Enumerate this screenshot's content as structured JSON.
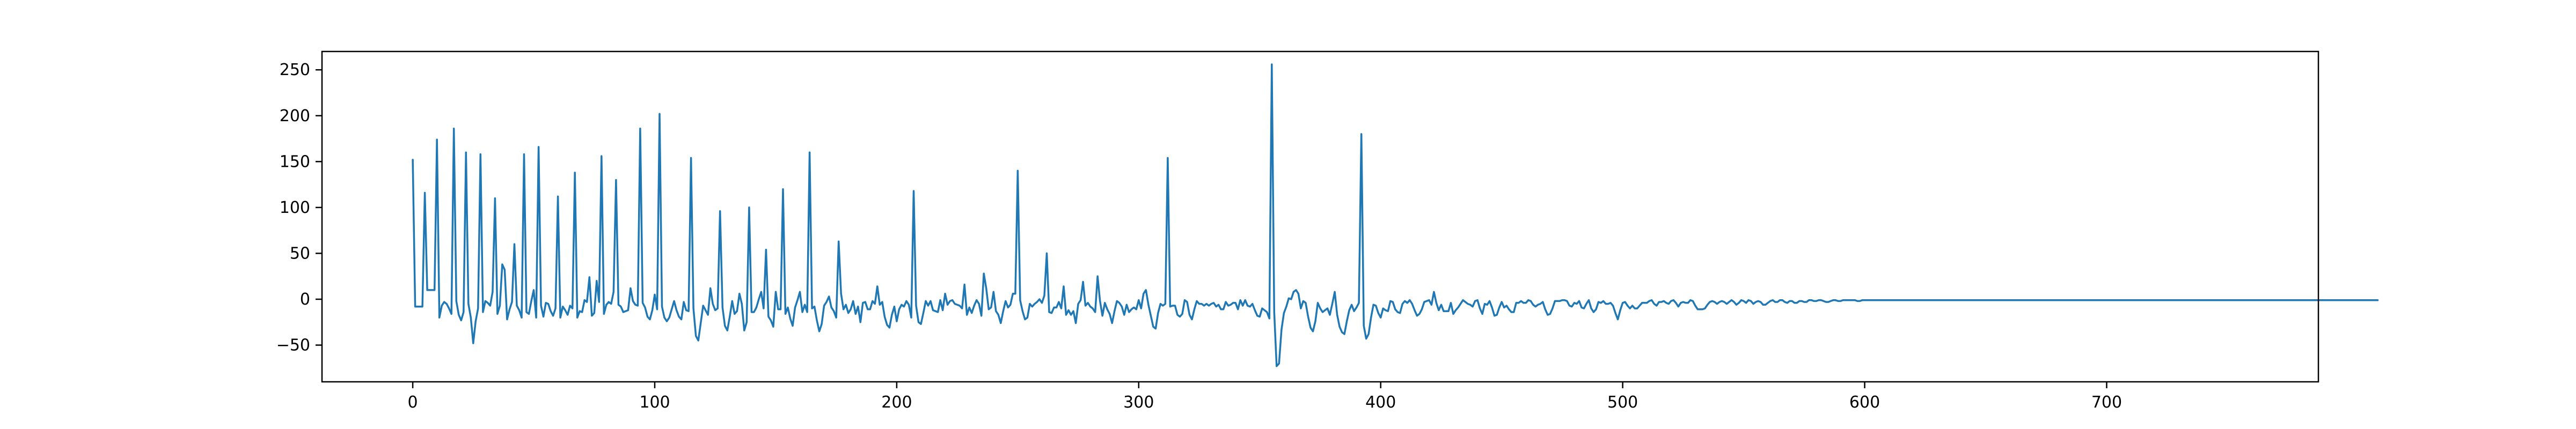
{
  "colors": {
    "series": "#1f77b4",
    "axes": "#000000",
    "background": "#ffffff"
  },
  "chart_data": {
    "type": "line",
    "title": "",
    "xlabel": "",
    "ylabel": "",
    "xlim": [
      -37.5,
      787.5
    ],
    "ylim": [
      -90,
      270
    ],
    "grid": false,
    "legend": "none",
    "x_ticks": [
      0,
      100,
      200,
      300,
      400,
      500,
      600,
      700
    ],
    "y_ticks": [
      -50,
      0,
      50,
      100,
      150,
      200,
      250
    ],
    "series": [
      {
        "x_start": 0,
        "x_step": 1,
        "values": [
          152,
          -8,
          -8,
          -8,
          -8,
          116,
          10,
          10,
          10,
          10,
          174,
          -20,
          -7,
          -3,
          -5,
          -10,
          -16,
          186,
          -2,
          -17,
          -23,
          -14,
          160,
          -5,
          -20,
          -48,
          -24,
          -10,
          158,
          -14,
          -2,
          -4,
          -7,
          8,
          110,
          -16,
          -7,
          38,
          32,
          -22,
          -11,
          -3,
          60,
          -7,
          -12,
          -20,
          158,
          -14,
          -16,
          -2,
          10,
          -20,
          166,
          -7,
          -19,
          -4,
          -5,
          -13,
          -18,
          -10,
          112,
          -20,
          -8,
          -12,
          -17,
          -7,
          -10,
          138,
          -20,
          -13,
          -14,
          -1,
          -3,
          24,
          -18,
          -15,
          20,
          -3,
          156,
          -16,
          -6,
          -3,
          -5,
          8,
          130,
          -6,
          -8,
          -14,
          -13,
          -12,
          12,
          -2,
          -6,
          -7,
          186,
          -4,
          -9,
          -19,
          -22,
          -12,
          5,
          -11,
          202,
          -8,
          -20,
          -24,
          -20,
          -11,
          -2,
          -12,
          -19,
          -22,
          -3,
          -12,
          -13,
          154,
          -10,
          -40,
          -45,
          -26,
          -7,
          -12,
          -17,
          12,
          -5,
          -12,
          -10,
          96,
          -9,
          -29,
          -34,
          -19,
          -2,
          -16,
          -13,
          6,
          -5,
          -34,
          -25,
          100,
          -14,
          -14,
          -9,
          0,
          8,
          -10,
          54,
          -19,
          -23,
          -30,
          8,
          -11,
          -11,
          120,
          -16,
          -9,
          -21,
          -29,
          -9,
          -1,
          8,
          -14,
          -6,
          -14,
          160,
          -10,
          -8,
          -23,
          -35,
          -27,
          -7,
          -3,
          3,
          -9,
          -13,
          -20,
          63,
          6,
          -11,
          -6,
          -15,
          -11,
          -2,
          -16,
          -8,
          -25,
          -4,
          -3,
          -11,
          -11,
          -2,
          -5,
          14,
          -6,
          -3,
          -19,
          -28,
          -31,
          -17,
          -8,
          -24,
          -11,
          -6,
          -8,
          -2,
          -6,
          -20,
          118,
          -7,
          -25,
          -27,
          -15,
          -2,
          -7,
          -2,
          -12,
          -13,
          -14,
          -1,
          -12,
          6,
          -6,
          -2,
          -1,
          -5,
          -6,
          -7,
          -10,
          16,
          -17,
          -9,
          -15,
          -7,
          -1,
          -5,
          -18,
          28,
          12,
          -11,
          -9,
          8,
          -13,
          -17,
          -26,
          -13,
          -2,
          -9,
          -6,
          6,
          6,
          140,
          -1,
          -13,
          -22,
          -20,
          -5,
          -8,
          -5,
          -3,
          0,
          -4,
          4,
          50,
          -14,
          -15,
          -9,
          -9,
          -3,
          -10,
          14,
          -17,
          -12,
          -17,
          -13,
          -26,
          -5,
          -1,
          19,
          -7,
          -4,
          -8,
          -10,
          -14,
          25,
          -2,
          -18,
          -4,
          -11,
          -16,
          -26,
          -13,
          -2,
          -4,
          -8,
          -17,
          -6,
          -14,
          -11,
          -9,
          -11,
          -1,
          -10,
          6,
          10,
          -6,
          -18,
          -30,
          -32,
          -15,
          -5,
          -7,
          -5,
          154,
          -8,
          -7,
          -7,
          -17,
          -19,
          -16,
          -1,
          -3,
          -17,
          -22,
          -11,
          -2,
          -5,
          -5,
          -7,
          -5,
          -7,
          -5,
          -4,
          -8,
          -6,
          -11,
          -11,
          -3,
          -7,
          -6,
          -4,
          -4,
          -11,
          -1,
          -7,
          -1,
          -7,
          -8,
          -5,
          -12,
          -18,
          -19,
          -10,
          -12,
          -14,
          -21,
          256,
          -14,
          -73,
          -70,
          -33,
          -15,
          -8,
          1,
          0,
          8,
          10,
          6,
          -10,
          -2,
          -4,
          -19,
          -31,
          -35,
          -24,
          -4,
          -10,
          -14,
          -12,
          -10,
          -17,
          -5,
          8,
          -17,
          -30,
          -36,
          -38,
          -24,
          -12,
          -6,
          -13,
          -9,
          -4,
          180,
          -29,
          -43,
          -38,
          -20,
          -6,
          -7,
          -15,
          -20,
          -10,
          -12,
          -13,
          -2,
          -3,
          -11,
          -14,
          -15,
          -5,
          -2,
          -4,
          -1,
          -5,
          -12,
          -18,
          -16,
          -11,
          -3,
          -2,
          -1,
          -6,
          8,
          -4,
          -12,
          -6,
          -13,
          -13,
          -13,
          -4,
          -16,
          -12,
          -9,
          -5,
          -1,
          -3,
          -5,
          -6,
          -8,
          -2,
          -1,
          -10,
          -16,
          -5,
          -6,
          -2,
          -9,
          -18,
          -17,
          -9,
          -3,
          -9,
          -7,
          -11,
          -14,
          -14,
          -4,
          -4,
          -2,
          -4,
          -4,
          -1,
          -2,
          -6,
          -8,
          -6,
          -5,
          -3,
          -11,
          -17,
          -16,
          -10,
          -2,
          -2,
          -2,
          -1,
          -1,
          -2,
          -7,
          -8,
          -4,
          -5,
          -2,
          -9,
          -10,
          -5,
          -1,
          -10,
          -14,
          -11,
          -3,
          -4,
          -2,
          -5,
          -5,
          -4,
          -7,
          -15,
          -22,
          -12,
          -4,
          -3,
          -7,
          -10,
          -7,
          -10,
          -10,
          -7,
          -4,
          -4,
          -4,
          -2,
          -1,
          -5,
          -7,
          -3,
          -3,
          -2,
          -4,
          -5,
          -2,
          -1,
          -4,
          -8,
          -4,
          -3,
          -4,
          -4,
          -1,
          -2,
          -7,
          -11,
          -11,
          -11,
          -10,
          -6,
          -3,
          -2,
          -3,
          -5,
          -3,
          -2,
          -3,
          -5,
          -3,
          -1,
          -3,
          -6,
          -4,
          -1,
          -2,
          -4,
          -1,
          -2,
          -5,
          -3,
          -2,
          -3,
          -6,
          -6,
          -4,
          -2,
          -1,
          -3,
          -3,
          -1,
          -1,
          -3,
          -4,
          -2,
          -2,
          -4,
          -4,
          -2,
          -2,
          -3,
          -3,
          -1,
          -1,
          -2,
          -2,
          -1,
          -1,
          -2,
          -3,
          -3,
          -2,
          -1,
          -1,
          -2,
          -2,
          -1,
          -1,
          -1,
          -1,
          -1,
          -1,
          -2,
          -2,
          -1,
          -1,
          -1,
          -1,
          -1,
          -1,
          -1,
          -1,
          -1,
          -1,
          -1,
          -1,
          -1,
          -1,
          -1,
          -1,
          -1,
          -1,
          -1,
          -1,
          -1,
          -1,
          -1,
          -1,
          -1,
          -1,
          -1,
          -1,
          -1,
          -1,
          -1,
          -1,
          -1,
          -1,
          -1,
          -1,
          -1,
          -1,
          -1,
          -1,
          -1,
          -1,
          -1,
          -1,
          -1,
          -1,
          -1,
          -1,
          -1,
          -1,
          -1,
          -1,
          -1,
          -1,
          -1,
          -1,
          -1,
          -1,
          -1,
          -1,
          -1,
          -1,
          -1,
          -1,
          -1,
          -1,
          -1,
          -1,
          -1,
          -1,
          -1,
          -1,
          -1,
          -1,
          -1,
          -1,
          -1,
          -1,
          -1,
          -1,
          -1,
          -1,
          -1,
          -1,
          -1,
          -1,
          -1,
          -1,
          -1,
          -1,
          -1,
          -1,
          -1,
          -1,
          -1,
          -1,
          -1,
          -1,
          -1,
          -1,
          -1,
          -1,
          -1,
          -1,
          -1,
          -1,
          -1,
          -1,
          -1,
          -1,
          -1,
          -1,
          -1,
          -1,
          -1,
          -1,
          -1,
          -1,
          -1,
          -1,
          -1,
          -1,
          -1,
          -1,
          -1,
          -1,
          -1,
          -1,
          -1,
          -1,
          -1,
          -1,
          -1,
          -1,
          -1,
          -1,
          -1,
          -1,
          -1,
          -1,
          -1,
          -1,
          -1,
          -1,
          -1,
          -1,
          -1,
          -1,
          -1,
          -1,
          -1,
          -1,
          -1,
          -1,
          -1,
          -1,
          -1,
          -1,
          -1,
          -1,
          -1,
          -1,
          -1,
          -1,
          -1,
          -1,
          -1,
          -1,
          -1,
          -1,
          -1,
          -1,
          -1,
          -1,
          -1,
          -1,
          -1,
          -1,
          -1,
          -1,
          -1,
          -1,
          -1,
          -1,
          -1,
          -1,
          -1,
          -1,
          -1,
          -1,
          -1,
          -1,
          -1,
          -1,
          -1,
          -1,
          -1,
          -1,
          -1,
          -1,
          -1,
          -1,
          -1,
          -1,
          -1,
          -1,
          -1,
          -1,
          -1,
          -1,
          -1,
          -1,
          -1,
          -1
        ]
      }
    ]
  }
}
